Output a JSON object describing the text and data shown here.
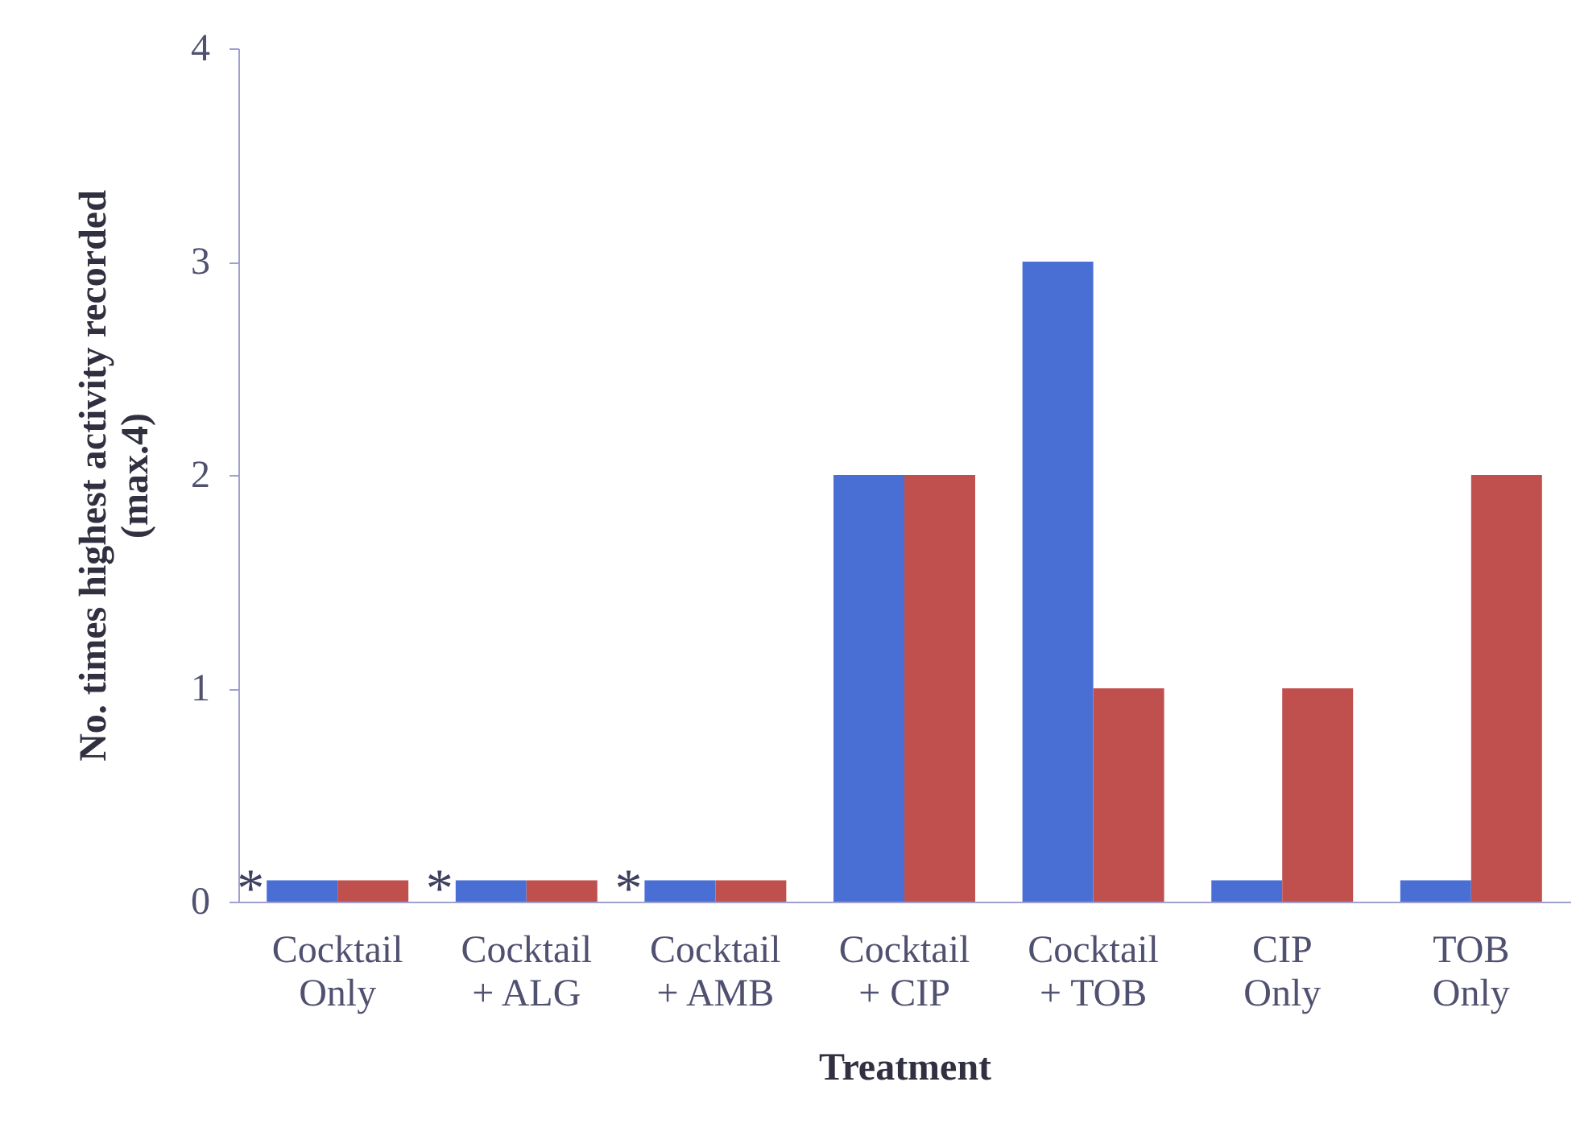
{
  "chart_data": {
    "type": "bar",
    "xlabel": "Treatment",
    "ylabel": "No. times highest activity recorded (max.4)",
    "categories": [
      "Cocktail Only",
      "Cocktail + ALG",
      "Cocktail + AMB",
      "Cocktail + CIP",
      "Cocktail + TOB",
      "CIP Only",
      "TOB Only"
    ],
    "series": [
      {
        "color": "#4a6fd4",
        "values": [
          0.1,
          0.1,
          0.1,
          2,
          3,
          0.1,
          0.1
        ]
      },
      {
        "color": "#c0504d",
        "values": [
          0.1,
          0.1,
          0.1,
          2,
          1,
          1,
          2
        ]
      }
    ],
    "ylim": [
      0,
      4
    ],
    "yticks": [
      0,
      1,
      2,
      3,
      4
    ],
    "grid": false,
    "legend": false,
    "annotations": [
      {
        "text": "*",
        "x": "Cocktail Only",
        "y": 0.1
      },
      {
        "text": "*",
        "x": "Cocktail + ALG",
        "y": 0.1
      },
      {
        "text": "*",
        "x": "Cocktail + AMB",
        "y": 0.1
      }
    ]
  }
}
